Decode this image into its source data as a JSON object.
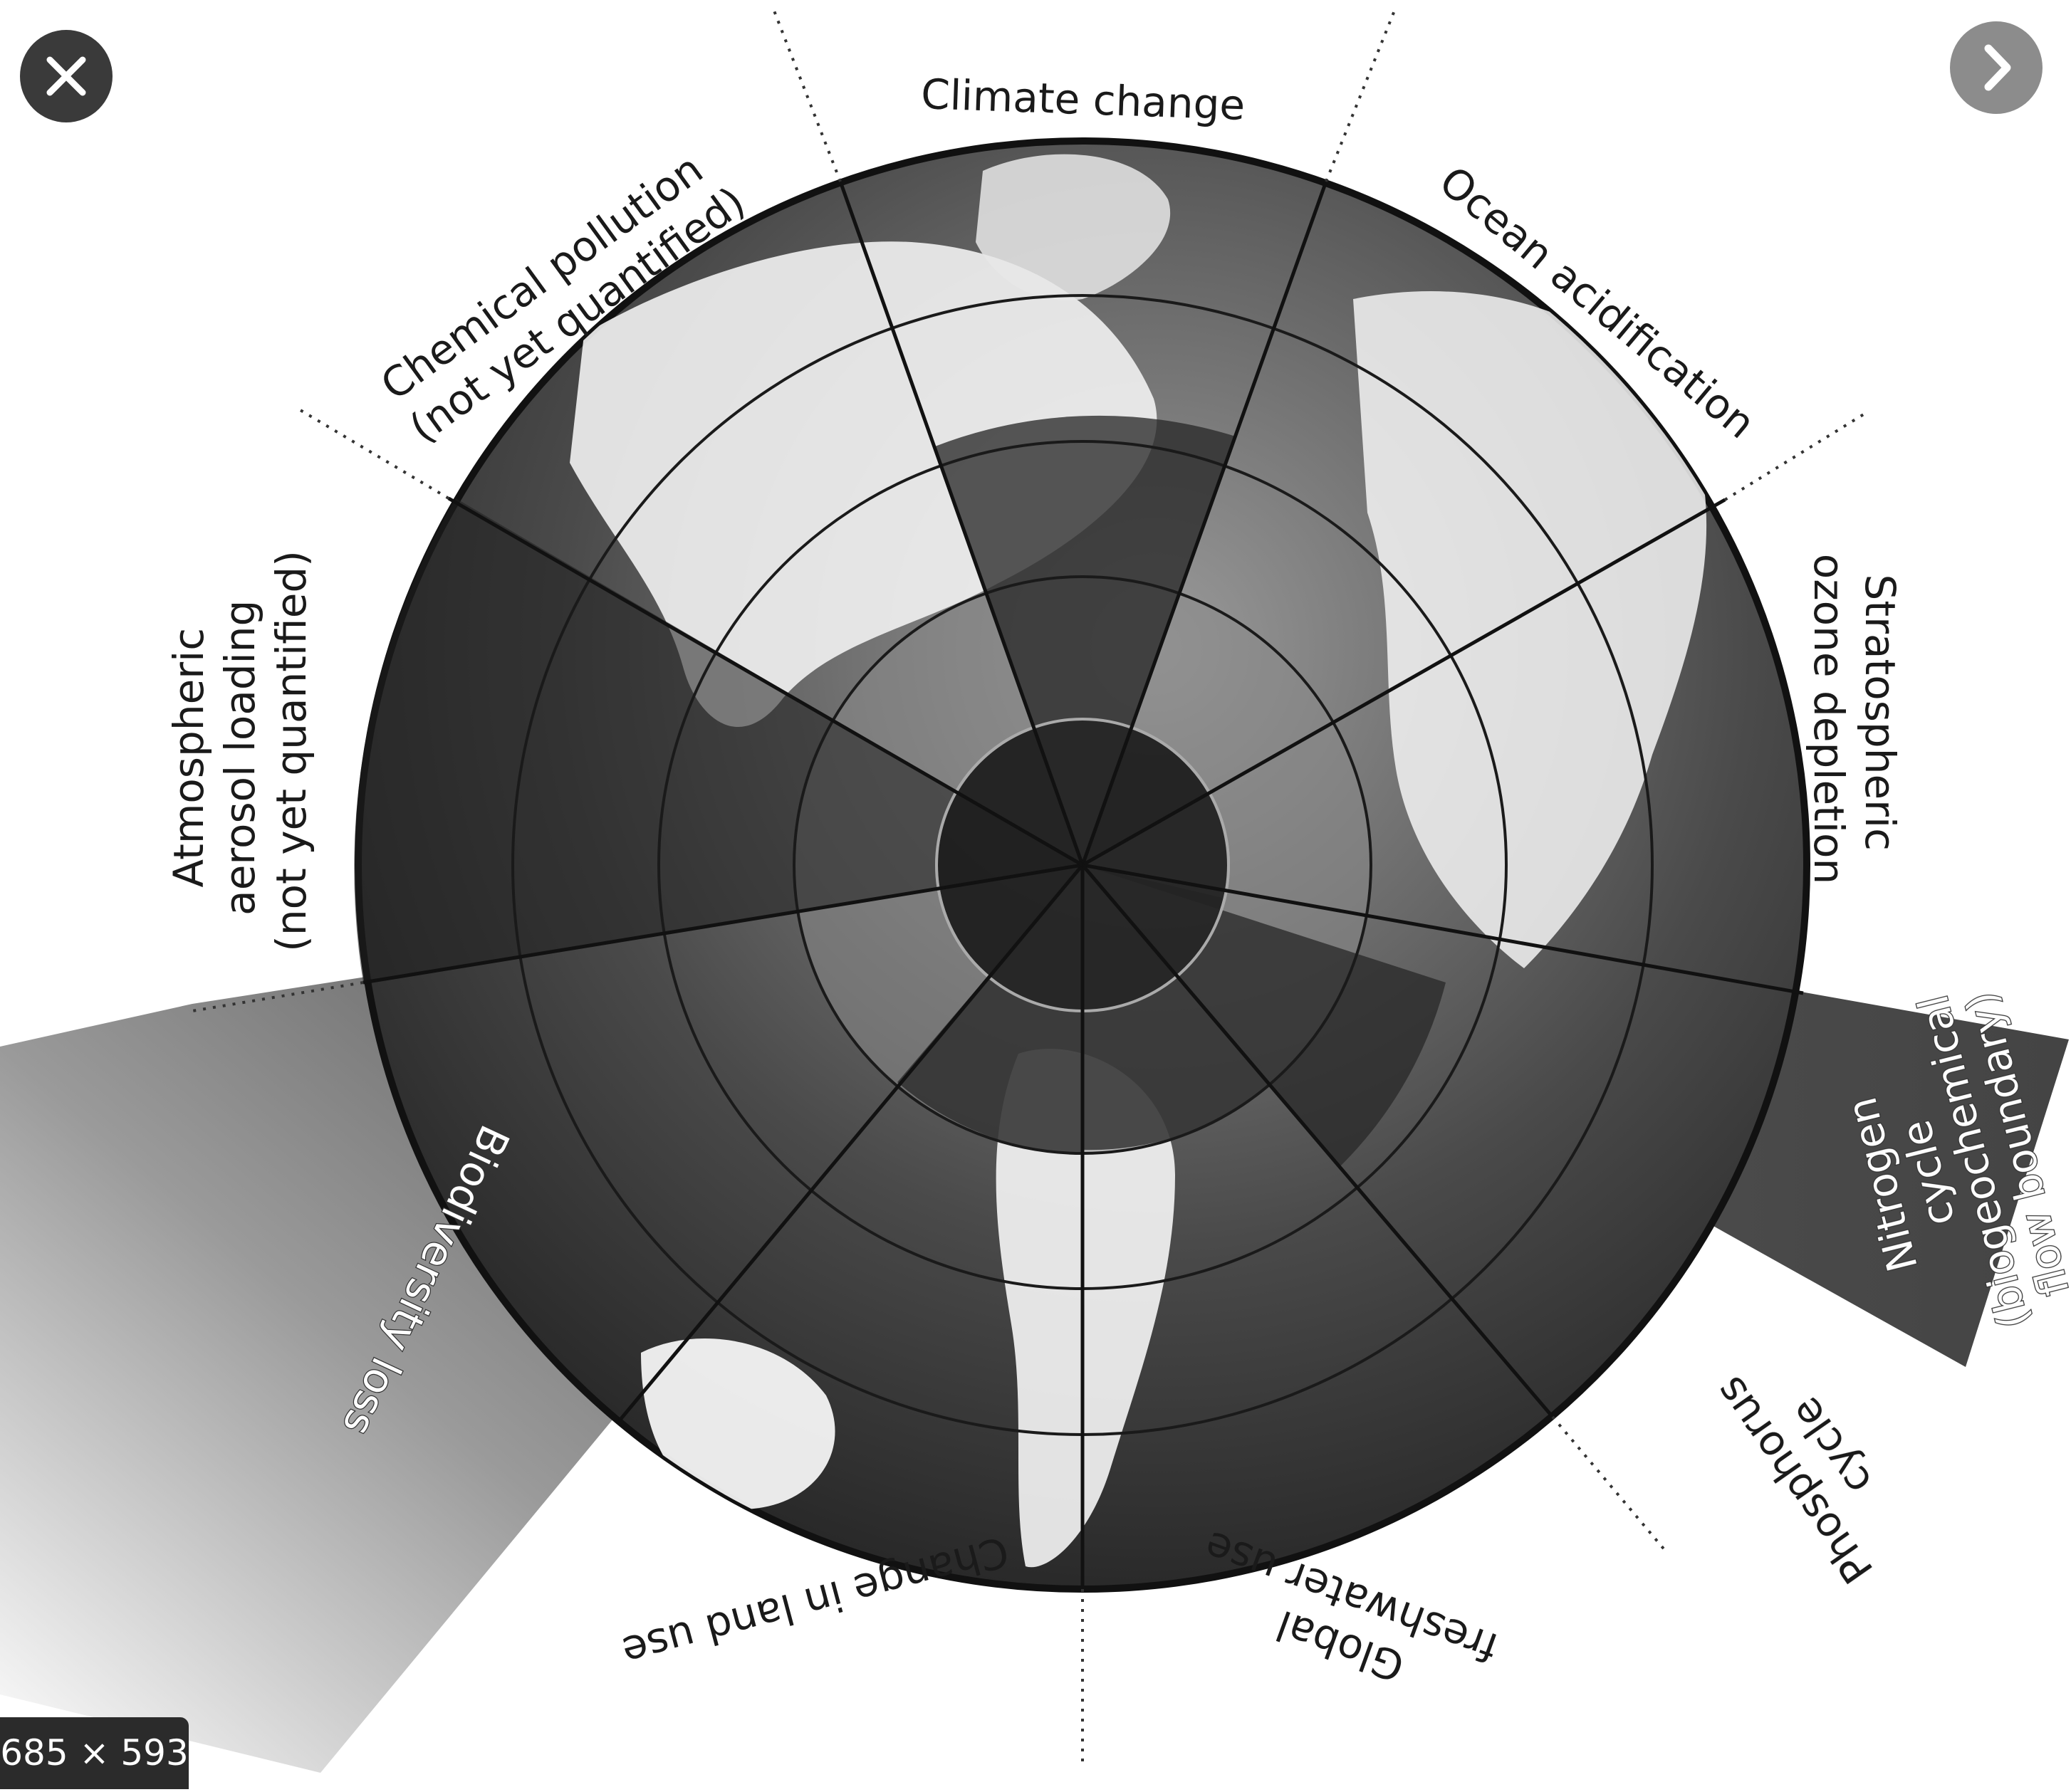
{
  "viewer": {
    "image_dimensions": "685 × 593"
  },
  "diagram": {
    "segments": [
      {
        "id": "climate",
        "lines": [
          "Climate change"
        ]
      },
      {
        "id": "ocean",
        "lines": [
          "Ocean acidification"
        ]
      },
      {
        "id": "ozone",
        "lines": [
          "Stratospheric",
          "ozone depletion"
        ]
      },
      {
        "id": "nitrogen",
        "lines": [
          "Nitrogen",
          "cycle",
          "(biogeochemical",
          "flow boundary)"
        ]
      },
      {
        "id": "phosphorus",
        "lines": [
          "Phosphorus",
          "cycle"
        ]
      },
      {
        "id": "freshwater",
        "lines": [
          "Global",
          "freshwater use"
        ]
      },
      {
        "id": "landuse",
        "lines": [
          "Change in land use"
        ]
      },
      {
        "id": "biodiversity",
        "lines": [
          "Biodiversity loss"
        ]
      },
      {
        "id": "aerosol",
        "lines": [
          "Atmospheric",
          "aerosol loading",
          "(not yet quantified)"
        ]
      },
      {
        "id": "chemical",
        "lines": [
          "Chemical pollution",
          "(not yet quantified)"
        ]
      }
    ]
  }
}
